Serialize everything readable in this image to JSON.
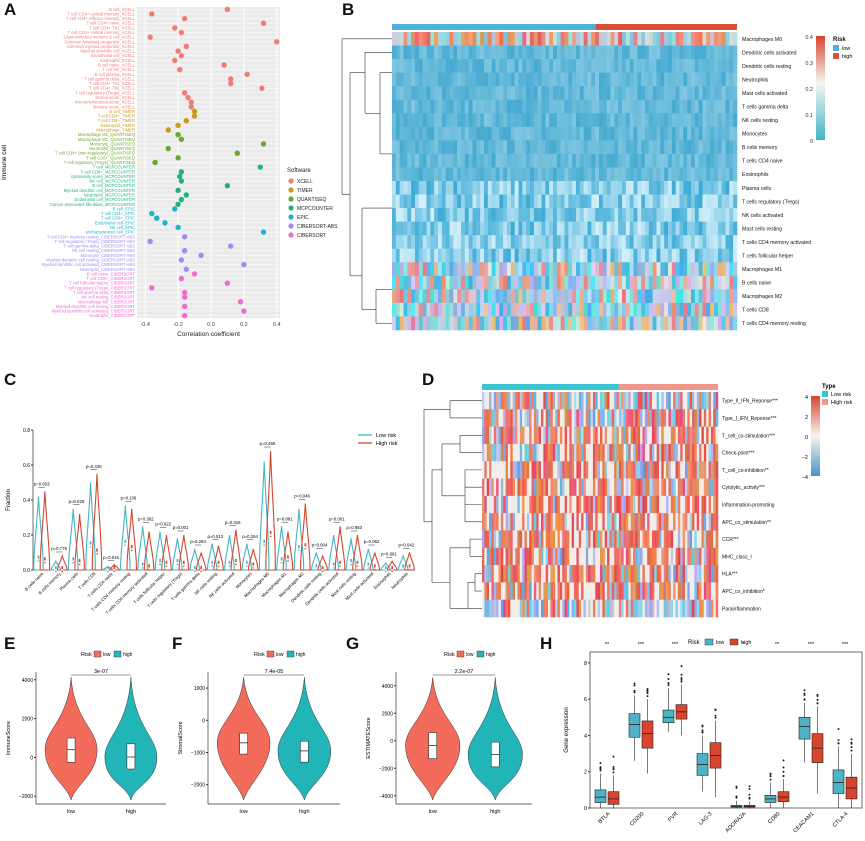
{
  "panel_letters": {
    "A": "A",
    "B": "B",
    "C": "C",
    "D": "D",
    "E": "E",
    "F": "F",
    "G": "G",
    "H": "H"
  },
  "colors": {
    "low": "#41b6c4",
    "high": "#d7452e",
    "risk_low_bar": "#4fb3d9",
    "risk_high_bar": "#d9503a",
    "E_low": "#f26b5b",
    "E_high": "#22b5b8"
  },
  "chart_data": [
    {
      "panel": "A",
      "type": "scatter",
      "xlabel": "Correlation coefficient",
      "ylabel": "Immune cell",
      "xticks": [
        "-0.4",
        "-0.2",
        "0.0",
        "0.2",
        "0.4"
      ],
      "xlim": [
        -0.45,
        0.42
      ],
      "legend_title": "Software",
      "software": [
        {
          "name": "XCELL",
          "color": "#f07c74"
        },
        {
          "name": "TIMER",
          "color": "#c99a1e"
        },
        {
          "name": "QUANTISEQ",
          "color": "#6aa82a"
        },
        {
          "name": "MCPCOUNTER",
          "color": "#1fb37a"
        },
        {
          "name": "EPIC",
          "color": "#1eb3c9"
        },
        {
          "name": "CIBERSORT-ABS",
          "color": "#a08cf0"
        },
        {
          "name": "CIBERSORT",
          "color": "#ee6ccf"
        }
      ],
      "points": [
        {
          "label": "B cell_XCELL",
          "value": 0.1,
          "sw": 0
        },
        {
          "label": "T cell CD4+ central memory_XCELL",
          "value": -0.36,
          "sw": 0
        },
        {
          "label": "T cell CD4+ effector memory_XCELL",
          "value": -0.16,
          "sw": 0
        },
        {
          "label": "T cell CD4+ naive_XCELL",
          "value": 0.32,
          "sw": 0
        },
        {
          "label": "T cell CD4+ Th1_XCELL",
          "value": -0.22,
          "sw": 0
        },
        {
          "label": "T cell CD4+ central memory_XCELL",
          "value": -0.18,
          "sw": 0
        },
        {
          "label": "Class-switched memory B cell_XCELL",
          "value": -0.37,
          "sw": 0
        },
        {
          "label": "Common lymphoid progenitor_XCELL",
          "value": 0.4,
          "sw": 0
        },
        {
          "label": "Common myeloid progenitor_XCELL",
          "value": -0.15,
          "sw": 0
        },
        {
          "label": "Myeloid dendritic cell_XCELL",
          "value": -0.2,
          "sw": 0
        },
        {
          "label": "Endothelial cell_XCELL",
          "value": -0.18,
          "sw": 0
        },
        {
          "label": "Eosinophil_XCELL",
          "value": -0.22,
          "sw": 0
        },
        {
          "label": "B cell naive_XCELL",
          "value": 0.08,
          "sw": 0
        },
        {
          "label": "T cell NK_XCELL",
          "value": -0.19,
          "sw": 0
        },
        {
          "label": "B cell plasma_XCELL",
          "value": 0.22,
          "sw": 0
        },
        {
          "label": "T cell gamma delta_XCELL",
          "value": 0.12,
          "sw": 0
        },
        {
          "label": "T cell CD4+ Th2_XCELL",
          "value": 0.12,
          "sw": 0
        },
        {
          "label": "T cell CD4+ Th2_XCELL",
          "value": 0.31,
          "sw": 0
        },
        {
          "label": "T cell regulatory (Tregs)_XCELL",
          "value": -0.16,
          "sw": 0
        },
        {
          "label": "stroma score_XCELL",
          "value": -0.14,
          "sw": 0
        },
        {
          "label": "microenvironment score_XCELL",
          "value": -0.12,
          "sw": 0
        },
        {
          "label": "immune score_XCELL",
          "value": -0.12,
          "sw": 0
        },
        {
          "label": "B cell_TIMER",
          "value": -0.1,
          "sw": 1
        },
        {
          "label": "T cell CD4+_TIMER",
          "value": -0.1,
          "sw": 1
        },
        {
          "label": "T cell CD8+_TIMER",
          "value": -0.15,
          "sw": 1
        },
        {
          "label": "Neutrophil_TIMER",
          "value": -0.2,
          "sw": 1
        },
        {
          "label": "Macrophage_TIMER",
          "value": -0.26,
          "sw": 1
        },
        {
          "label": "Macrophage M1_QUANTISEQ",
          "value": -0.2,
          "sw": 2
        },
        {
          "label": "Macrophage M2_QUANTISEQ",
          "value": -0.18,
          "sw": 2
        },
        {
          "label": "Monocyte_QUANTISEQ",
          "value": 0.32,
          "sw": 2
        },
        {
          "label": "Neutrophil_QUANTISEQ",
          "value": -0.26,
          "sw": 2
        },
        {
          "label": "T cell CD4+ (non-regulatory)_QUANTISEQ",
          "value": 0.16,
          "sw": 2
        },
        {
          "label": "T cell CD8+_QUANTISEQ",
          "value": -0.2,
          "sw": 2
        },
        {
          "label": "T cell regulatory (Tregs)_QUANTISEQ",
          "value": -0.34,
          "sw": 2
        },
        {
          "label": "T cell_MCPCOUNTER",
          "value": 0.3,
          "sw": 3
        },
        {
          "label": "T cell CD8+_MCPCOUNTER",
          "value": -0.18,
          "sw": 3
        },
        {
          "label": "cytotoxicity score_MCPCOUNTER",
          "value": -0.19,
          "sw": 3
        },
        {
          "label": "NK cell_MCPCOUNTER",
          "value": -0.18,
          "sw": 3
        },
        {
          "label": "B cell_MCPCOUNTER",
          "value": 0.1,
          "sw": 3
        },
        {
          "label": "Myeloid dendritic cell_MCPCOUNTER",
          "value": -0.2,
          "sw": 3
        },
        {
          "label": "Neutrophil_MCPCOUNTER",
          "value": -0.15,
          "sw": 3
        },
        {
          "label": "Endothelial cell_MCPCOUNTER",
          "value": -0.18,
          "sw": 3
        },
        {
          "label": "Cancer associated fibroblast_MCPCOUNTER",
          "value": -0.2,
          "sw": 3
        },
        {
          "label": "B cell_EPIC",
          "value": -0.22,
          "sw": 4
        },
        {
          "label": "T cell CD4+_EPIC",
          "value": -0.36,
          "sw": 4
        },
        {
          "label": "T cell CD8+_EPIC",
          "value": -0.33,
          "sw": 4
        },
        {
          "label": "Endothelial cell_EPIC",
          "value": -0.28,
          "sw": 4
        },
        {
          "label": "NK cell_EPIC",
          "value": -0.2,
          "sw": 4
        },
        {
          "label": "uncharacterized cell_EPIC",
          "value": 0.32,
          "sw": 4
        },
        {
          "label": "T cell CD4+ memory resting_CIBERSORT-ABS",
          "value": -0.16,
          "sw": 5
        },
        {
          "label": "T cell regulatory (Tregs)_CIBERSORT-ABS",
          "value": -0.37,
          "sw": 5
        },
        {
          "label": "T cell gamma delta_CIBERSORT-ABS",
          "value": 0.12,
          "sw": 5
        },
        {
          "label": "NK cell resting_CIBERSORT-ABS",
          "value": -0.16,
          "sw": 5
        },
        {
          "label": "Monocyte_CIBERSORT-ABS",
          "value": -0.06,
          "sw": 5
        },
        {
          "label": "Myeloid dendritic cell resting_CIBERSORT-ABS",
          "value": -0.18,
          "sw": 5
        },
        {
          "label": "Myeloid dendritic cell activated_CIBERSORT-ABS",
          "value": 0.2,
          "sw": 5
        },
        {
          "label": "Neutrophil_CIBERSORT-ABS",
          "value": -0.15,
          "sw": 5
        },
        {
          "label": "B cell naive_CIBERSORT",
          "value": -0.1,
          "sw": 6
        },
        {
          "label": "T cell CD8+_CIBERSORT",
          "value": -0.18,
          "sw": 6
        },
        {
          "label": "T cell follicular helper_CIBERSORT",
          "value": 0.1,
          "sw": 6
        },
        {
          "label": "T cell regulatory (Tregs)_CIBERSORT",
          "value": -0.36,
          "sw": 6
        },
        {
          "label": "T cell gamma delta_CIBERSORT",
          "value": -0.16,
          "sw": 6
        },
        {
          "label": "NK cell resting_CIBERSORT",
          "value": -0.16,
          "sw": 6
        },
        {
          "label": "Macrophage M0_CIBERSORT",
          "value": 0.18,
          "sw": 6
        },
        {
          "label": "Myeloid dendritic cell resting_CIBERSORT",
          "value": -0.16,
          "sw": 6
        },
        {
          "label": "Myeloid dendritic cell activated_CIBERSORT",
          "value": 0.2,
          "sw": 6
        },
        {
          "label": "Neutrophil_CIBERSORT",
          "value": -0.16,
          "sw": 6
        }
      ]
    },
    {
      "panel": "B",
      "type": "heatmap",
      "annotation_title": "Risk",
      "annotation_levels": [
        "low",
        "high"
      ],
      "scale_ticks": [
        "0.4",
        "0.3",
        "0.2",
        "0.1",
        "0"
      ],
      "rows": [
        "Macrophages M0",
        "Dendritic cells activated",
        "Dendritic cells resting",
        "Neutrophils",
        "Mast cells activated",
        "T cells gamma delta",
        "NK cells resting",
        "Monocytes",
        "B cells memory",
        "T cells CD4 naive",
        "Eosinophils",
        "Plasma cells",
        "T cells regulatory (Tregs)",
        "NK cells activated",
        "Mast cells resting",
        "T cells CD4 memory activated",
        "T cells follicular helper",
        "Macrophages M1",
        "B cells naive",
        "Macrophages M2",
        "T cells CD8",
        "T cells CD4 memory resting"
      ]
    },
    {
      "panel": "C",
      "type": "violin",
      "ylabel": "Fraction",
      "yticks": [
        "0.0",
        "0.2",
        "0.4",
        "0.6",
        "0.8"
      ],
      "ylim": [
        0,
        0.8
      ],
      "legend": [
        "Low risk",
        "High risk"
      ],
      "categories": [
        "B cells naive",
        "B cells memory",
        "Plasma cells",
        "T cells CD8",
        "T cells CD4 naive",
        "T cells CD4 memory resting",
        "T cells CD4 memory activated",
        "T cells follicular helper",
        "T cells regulatory (Tregs)",
        "T cells gamma delta",
        "NK cells resting",
        "NK cells activated",
        "Monocytes",
        "Macrophages M0",
        "Macrophages M1",
        "Macrophages M2",
        "Dendritic cells resting",
        "Dendritic cells activated",
        "Mast cells resting",
        "Mast cells activated",
        "Eosinophils",
        "Neutrophils"
      ],
      "pvalues": [
        "p=0.603",
        "p=0.779",
        "p=0.029",
        "p=0.435",
        "p=0.015",
        "p=0.136",
        "p=0.362",
        "p=0.022",
        "p=0.001",
        "p=0.263",
        "p=0.513",
        "p=0.316",
        "p=0.264",
        "p=0.456",
        "p=0.881",
        "p=0.046",
        "p=0.004",
        "p=0.001",
        "p=0.953",
        "p=0.062",
        "p=0.661",
        "p=0.042"
      ],
      "low_max": [
        0.42,
        0.05,
        0.35,
        0.5,
        0.02,
        0.37,
        0.25,
        0.22,
        0.18,
        0.12,
        0.15,
        0.2,
        0.15,
        0.62,
        0.25,
        0.35,
        0.1,
        0.2,
        0.18,
        0.12,
        0.04,
        0.08
      ],
      "high_max": [
        0.45,
        0.08,
        0.32,
        0.55,
        0.03,
        0.35,
        0.22,
        0.2,
        0.2,
        0.1,
        0.14,
        0.23,
        0.12,
        0.68,
        0.22,
        0.38,
        0.08,
        0.25,
        0.2,
        0.1,
        0.05,
        0.1
      ],
      "low_median": [
        0.06,
        0.0,
        0.05,
        0.14,
        0.0,
        0.15,
        0.02,
        0.04,
        0.04,
        0.0,
        0.03,
        0.03,
        0.03,
        0.15,
        0.05,
        0.12,
        0.01,
        0.02,
        0.04,
        0.02,
        0.0,
        0.01
      ],
      "high_median": [
        0.05,
        0.0,
        0.04,
        0.1,
        0.0,
        0.12,
        0.01,
        0.03,
        0.03,
        0.0,
        0.03,
        0.04,
        0.02,
        0.2,
        0.06,
        0.13,
        0.0,
        0.03,
        0.03,
        0.01,
        0.0,
        0.01
      ]
    },
    {
      "panel": "D",
      "type": "heatmap",
      "annotation_title": "Type",
      "annotation_levels": [
        "Low risk",
        "High risk"
      ],
      "scale_ticks": [
        "4",
        "2",
        "0",
        "−2",
        "−4"
      ],
      "rows": [
        "Type_II_IFN_Reponse***",
        "Type_I_IFN_Reponse***",
        "T_cell_co-stimulation***",
        "Check-point***",
        "T_cell_co-inhibition**",
        "Cytolytic_activity***",
        "Inflammation-promoting",
        "APC_co_stimulation**",
        "CCR***",
        "MHC_class_I",
        "HLA***",
        "APC_co_inhibition*",
        "Parainflammation"
      ]
    },
    {
      "panel": "E",
      "type": "violin",
      "ylabel": "ImmuneScore",
      "legend_title": "Risk",
      "legend": [
        "low",
        "high"
      ],
      "categories": [
        "low",
        "high"
      ],
      "pvalue": "3e-07",
      "yticks": [
        "4000",
        "2000",
        "0",
        "−2000"
      ],
      "ylim": [
        -2400,
        4400
      ],
      "median": [
        400,
        20
      ],
      "q1": [
        -250,
        -600
      ],
      "q3": [
        1000,
        700
      ]
    },
    {
      "panel": "F",
      "type": "violin",
      "ylabel": "StromalScore",
      "legend_title": "Risk",
      "legend": [
        "low",
        "high"
      ],
      "categories": [
        "low",
        "high"
      ],
      "pvalue": "7.4e-05",
      "yticks": [
        "1000",
        "0",
        "−1000",
        "−2000"
      ],
      "ylim": [
        -2600,
        1500
      ],
      "median": [
        -700,
        -950
      ],
      "q1": [
        -1050,
        -1300
      ],
      "q3": [
        -400,
        -650
      ]
    },
    {
      "panel": "G",
      "type": "violin",
      "ylabel": "ESTIMATEScore",
      "legend_title": "Risk",
      "legend": [
        "low",
        "high"
      ],
      "categories": [
        "low",
        "high"
      ],
      "pvalue": "2.2e-07",
      "yticks": [
        "4000",
        "2000",
        "0",
        "−2000",
        "−4000"
      ],
      "ylim": [
        -4600,
        5000
      ],
      "median": [
        -350,
        -1000
      ],
      "q1": [
        -1300,
        -1900
      ],
      "q3": [
        600,
        -100
      ]
    },
    {
      "panel": "H",
      "type": "box",
      "ylabel": "Gene expression",
      "legend_title": "Risk",
      "legend": [
        "low",
        "high"
      ],
      "categories": [
        "BTLA",
        "CD200",
        "PVR",
        "LAG-3",
        "ADORA2A",
        "CD80",
        "CEACAM1",
        "CTLA-4"
      ],
      "sig": [
        "**",
        "***",
        "***",
        "**",
        "*",
        "**",
        "***",
        "***"
      ],
      "yticks": [
        "0",
        "2",
        "4",
        "6",
        "8"
      ],
      "ylim": [
        0,
        8.6
      ],
      "low": {
        "q1": [
          0.3,
          3.9,
          4.7,
          1.8,
          0.05,
          0.3,
          3.8,
          0.8
        ],
        "median": [
          0.6,
          4.6,
          5.0,
          2.4,
          0.08,
          0.5,
          4.5,
          1.4
        ],
        "q3": [
          1.0,
          5.2,
          5.4,
          3.0,
          0.15,
          0.7,
          5.0,
          2.1
        ],
        "min": [
          0.0,
          2.6,
          4.2,
          0.9,
          0.0,
          0.0,
          2.5,
          0.0
        ],
        "max": [
          1.9,
          6.2,
          6.6,
          4.0,
          0.4,
          1.4,
          5.8,
          3.4
        ]
      },
      "high": {
        "q1": [
          0.2,
          3.3,
          4.9,
          2.2,
          0.05,
          0.35,
          2.5,
          0.5
        ],
        "median": [
          0.5,
          4.1,
          5.3,
          2.9,
          0.08,
          0.6,
          3.3,
          1.1
        ],
        "q3": [
          0.9,
          4.8,
          5.7,
          3.6,
          0.15,
          0.9,
          4.1,
          1.7
        ],
        "min": [
          0.0,
          1.9,
          4.0,
          0.6,
          0.0,
          0.0,
          0.8,
          0.0
        ],
        "max": [
          1.8,
          6.0,
          6.8,
          4.8,
          0.35,
          1.6,
          5.6,
          3.0
        ]
      }
    }
  ]
}
